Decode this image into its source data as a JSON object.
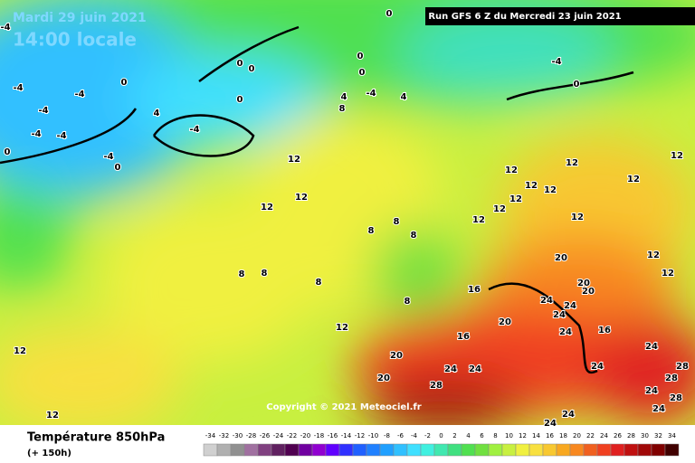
{
  "header": {
    "date": "Mardi 29 juin 2021",
    "time": "14:00 locale",
    "run": "Run GFS 6 Z du Mercredi 23 juin 2021"
  },
  "copyright": "Copyright © 2021 Meteociel.fr",
  "legend": {
    "title": "Température 850hPa",
    "subtitle": "(+ 150h)",
    "ticks": [
      -34,
      -32,
      -30,
      -28,
      -26,
      -24,
      -22,
      -20,
      -18,
      -16,
      -14,
      -12,
      -10,
      -8,
      -6,
      -4,
      -2,
      0,
      2,
      4,
      6,
      8,
      10,
      12,
      14,
      16,
      18,
      20,
      22,
      24,
      26,
      28,
      30,
      32,
      34
    ],
    "colors": [
      "#d0d0d0",
      "#b0b0b0",
      "#909090",
      "#a070a0",
      "#804080",
      "#602060",
      "#500050",
      "#7000a0",
      "#9000d0",
      "#6000ff",
      "#3030ff",
      "#2060ff",
      "#2080ff",
      "#20a0ff",
      "#30c0ff",
      "#40e0ff",
      "#40f0e0",
      "#40e8b0",
      "#40e080",
      "#50e050",
      "#70e040",
      "#a0f040",
      "#c8f040",
      "#f0f040",
      "#f8e040",
      "#f8c830",
      "#f8a820",
      "#f88820",
      "#f06020",
      "#f04020",
      "#e02020",
      "#c01010",
      "#a00808",
      "#800000",
      "#400000"
    ]
  },
  "contour_labels": [
    0,
    -4,
    0,
    0,
    -4,
    0,
    0,
    0,
    -4,
    -4,
    0,
    -4,
    4,
    -4,
    0,
    -4,
    -4,
    -4,
    0,
    0,
    4,
    -4,
    4,
    8,
    12,
    12,
    12,
    12,
    12,
    12,
    12,
    12,
    12,
    12,
    12,
    12,
    8,
    8,
    8,
    12,
    12,
    20,
    20,
    20,
    12,
    8,
    8,
    8,
    8,
    16,
    24,
    24,
    24,
    24,
    16,
    20,
    16,
    12,
    20,
    24,
    24,
    24,
    20,
    28,
    24,
    28,
    28,
    24,
    28,
    24,
    24,
    24,
    12,
    12
  ]
}
